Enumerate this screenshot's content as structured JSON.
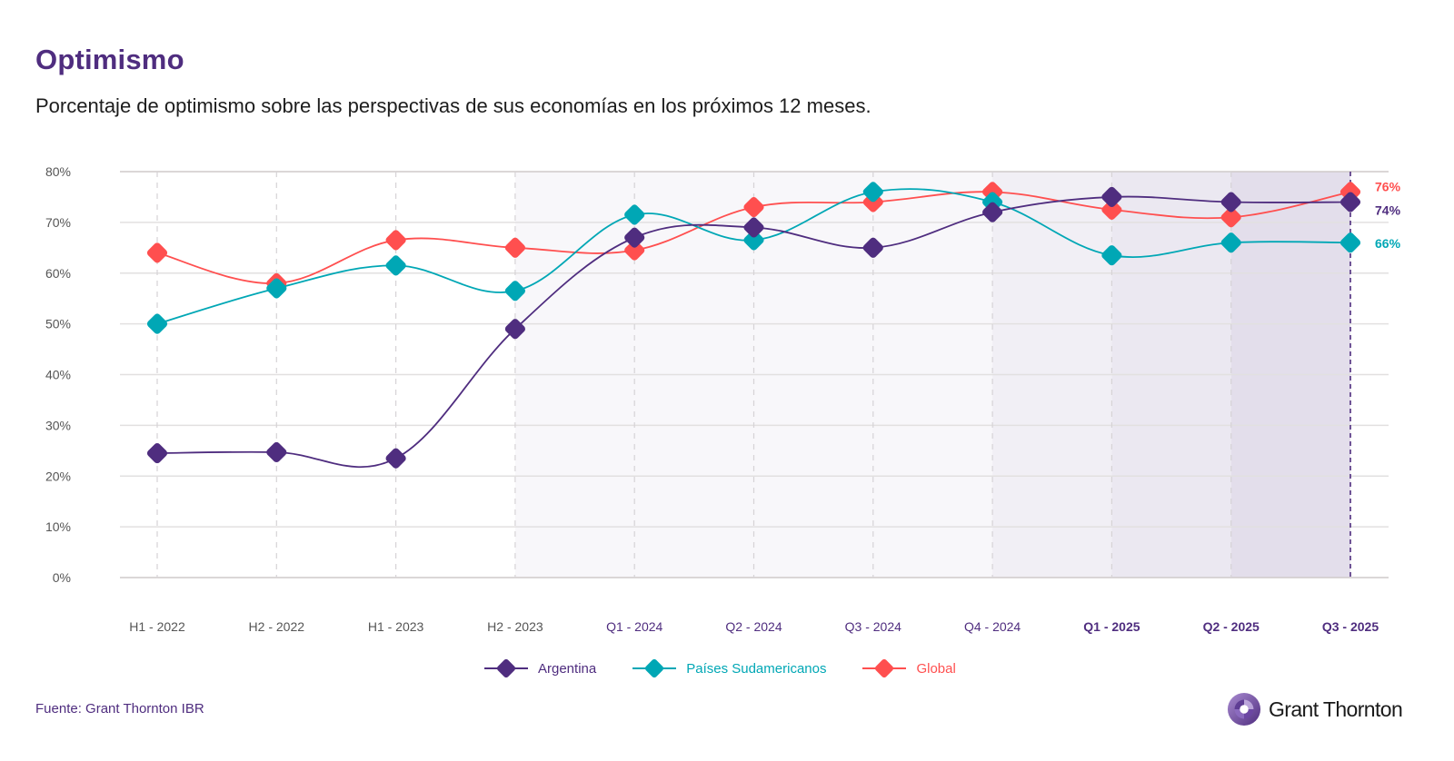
{
  "header": {
    "title": "Optimismo",
    "subtitle": "Porcentaje de optimismo sobre las perspectivas de sus economías en los próximos 12 meses."
  },
  "footer": {
    "source": "Fuente: Grant Thornton IBR",
    "logo_text": "Grant Thornton",
    "logo_icon": "grant-thornton-logo-icon"
  },
  "colors": {
    "argentina": "#4f2d7f",
    "paises": "#00a7b5",
    "global": "#ff4f4f",
    "title": "#4f2d7f",
    "axis_text_past": "#555555",
    "axis_text_recent": "#4f2d7f"
  },
  "chart_data": {
    "type": "line",
    "title": "Optimismo",
    "subtitle": "Porcentaje de optimismo sobre las perspectivas de sus economías en los próximos 12 meses.",
    "xlabel": "",
    "ylabel": "",
    "ylim": [
      0,
      80
    ],
    "yticks": [
      "0%",
      "10%",
      "20%",
      "30%",
      "40%",
      "50%",
      "60%",
      "70%",
      "80%"
    ],
    "ytick_values": [
      0,
      10,
      20,
      30,
      40,
      50,
      60,
      70,
      80
    ],
    "categories": [
      "H1 - 2022",
      "H2 - 2022",
      "H1 - 2023",
      "H2 - 2023",
      "Q1 - 2024",
      "Q2 - 2024",
      "Q3 - 2024",
      "Q4 - 2024",
      "Q1 - 2025",
      "Q2 - 2025",
      "Q3 - 2025"
    ],
    "category_style": [
      "past",
      "past",
      "past",
      "past",
      "recent",
      "recent",
      "recent",
      "recent",
      "latest",
      "latest",
      "latest"
    ],
    "grid": true,
    "legend": "bottom-center",
    "series": [
      {
        "name": "Argentina",
        "color": "#4f2d7f",
        "values": [
          24.5,
          24.7,
          23.5,
          49,
          67,
          69,
          65,
          72,
          75,
          74,
          74
        ],
        "end_label": "74%"
      },
      {
        "name": "Países Sudamericanos",
        "color": "#00a7b5",
        "values": [
          50,
          57,
          61.5,
          56.5,
          71.5,
          66.5,
          76,
          74,
          63.5,
          66,
          66
        ],
        "end_label": "66%"
      },
      {
        "name": "Global",
        "color": "#ff4f4f",
        "values": [
          64,
          58,
          66.5,
          65,
          64.5,
          73,
          74,
          76,
          72.5,
          71,
          76
        ],
        "end_label": "76%"
      }
    ],
    "shaded_ranges": [
      {
        "from": "H2 - 2023",
        "to": "Q4 - 2024",
        "color": "#f8f7fa"
      },
      {
        "from": "Q4 - 2024",
        "to": "Q1 - 2025",
        "color": "#f1eff5"
      },
      {
        "from": "Q1 - 2025",
        "to": "Q2 - 2025",
        "color": "#ebe8f1"
      },
      {
        "from": "Q2 - 2025",
        "to": "Q3 - 2025",
        "color": "#e3deeb"
      }
    ],
    "highlight_category": "Q3 - 2025"
  }
}
